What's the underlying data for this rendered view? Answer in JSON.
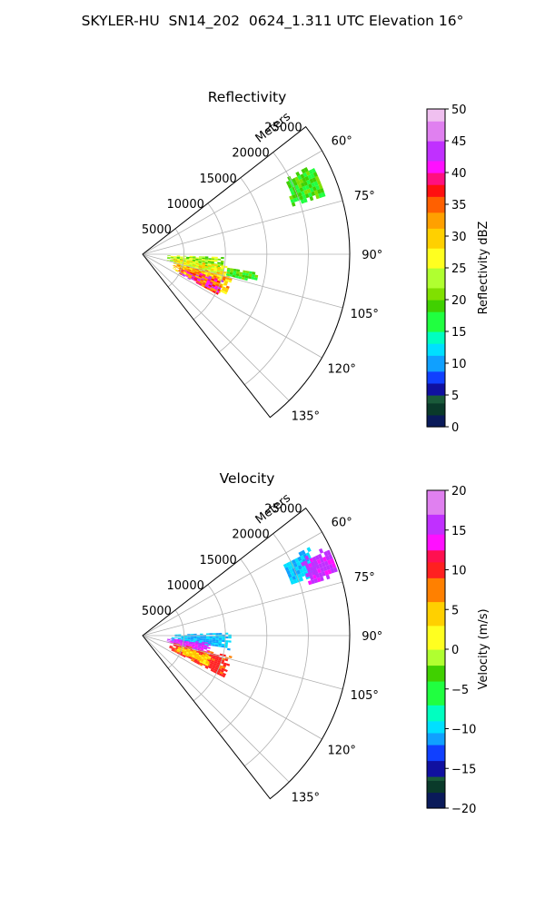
{
  "figure": {
    "suptitle": "SKYLER-HU  SN14_202  0624_1.311 UTC Elevation 16°"
  },
  "chart_data": [
    {
      "type": "heatmap",
      "subtype": "polar-sector",
      "title": "Reflectivity",
      "radial_label": "Meters",
      "radial_ticks": [
        5000,
        10000,
        15000,
        20000,
        25000
      ],
      "radial_tick_labels": [
        "5000",
        "10000",
        "15000",
        "20000",
        "25000"
      ],
      "rlim": [
        0,
        25000
      ],
      "theta_ticks": [
        60,
        75,
        90,
        105,
        120,
        135
      ],
      "theta_tick_labels": [
        "60°",
        "75°",
        "90°",
        "105°",
        "120°",
        "135°"
      ],
      "theta_lim": [
        52,
        142
      ],
      "grid": true,
      "colorbar": {
        "label": "Reflectivity dBZ",
        "range": [
          0,
          50
        ],
        "ticks": [
          0,
          5,
          10,
          15,
          20,
          25,
          30,
          35,
          40,
          45,
          50
        ],
        "tick_labels": [
          "0",
          "5",
          "10",
          "15",
          "20",
          "25",
          "30",
          "35",
          "40",
          "45",
          "50"
        ],
        "stops": [
          {
            "v": 0,
            "color": "#0a1a5a"
          },
          {
            "v": 2,
            "color": "#0a3a2a"
          },
          {
            "v": 4,
            "color": "#1a5a3a"
          },
          {
            "v": 5,
            "color": "#1010a0"
          },
          {
            "v": 7,
            "color": "#1040ff"
          },
          {
            "v": 9,
            "color": "#10a0ff"
          },
          {
            "v": 11,
            "color": "#00e0ff"
          },
          {
            "v": 13,
            "color": "#00ffc0"
          },
          {
            "v": 15,
            "color": "#20ff40"
          },
          {
            "v": 18,
            "color": "#40d000"
          },
          {
            "v": 20,
            "color": "#80e000"
          },
          {
            "v": 22,
            "color": "#b0ff30"
          },
          {
            "v": 25,
            "color": "#ffff20"
          },
          {
            "v": 28,
            "color": "#ffd000"
          },
          {
            "v": 31,
            "color": "#ffa000"
          },
          {
            "v": 34,
            "color": "#ff6000"
          },
          {
            "v": 36,
            "color": "#ff1010"
          },
          {
            "v": 38,
            "color": "#ff1080"
          },
          {
            "v": 40,
            "color": "#ff10ff"
          },
          {
            "v": 42,
            "color": "#c030ff"
          },
          {
            "v": 45,
            "color": "#e080f0"
          },
          {
            "v": 48,
            "color": "#f0c0f0"
          },
          {
            "v": 50,
            "color": "#fff0ff"
          }
        ]
      },
      "echo_regions": [
        {
          "theta": [
            92,
            103
          ],
          "r": [
            3000,
            9500
          ],
          "values": [
            18,
            28
          ]
        },
        {
          "theta": [
            98,
            110
          ],
          "r": [
            3500,
            10500
          ],
          "values": [
            22,
            32
          ]
        },
        {
          "theta": [
            104,
            116
          ],
          "r": [
            4000,
            11000
          ],
          "values": [
            25,
            36
          ]
        },
        {
          "theta": [
            108,
            118
          ],
          "r": [
            5000,
            10000
          ],
          "values": [
            30,
            44
          ]
        },
        {
          "theta": [
            99,
            103
          ],
          "r": [
            10000,
            14000
          ],
          "values": [
            15,
            22
          ]
        },
        {
          "theta": [
            62,
            72
          ],
          "r": [
            19000,
            23000
          ],
          "values": [
            15,
            21
          ]
        }
      ]
    },
    {
      "type": "heatmap",
      "subtype": "polar-sector",
      "title": "Velocity",
      "radial_label": "Meters",
      "radial_ticks": [
        5000,
        10000,
        15000,
        20000,
        25000
      ],
      "radial_tick_labels": [
        "5000",
        "10000",
        "15000",
        "20000",
        "25000"
      ],
      "rlim": [
        0,
        25000
      ],
      "theta_ticks": [
        60,
        75,
        90,
        105,
        120,
        135
      ],
      "theta_tick_labels": [
        "60°",
        "75°",
        "90°",
        "105°",
        "120°",
        "135°"
      ],
      "theta_lim": [
        52,
        142
      ],
      "grid": true,
      "colorbar": {
        "label": "Velocity (m/s)",
        "range": [
          -20,
          20
        ],
        "ticks": [
          -20,
          -15,
          -10,
          -5,
          0,
          5,
          10,
          15,
          20
        ],
        "tick_labels": [
          "−20",
          "−15",
          "−10",
          "−5",
          "0",
          "5",
          "10",
          "15",
          "20"
        ],
        "stops": [
          {
            "v": -20,
            "color": "#0a1a5a"
          },
          {
            "v": -18,
            "color": "#0a3a2a"
          },
          {
            "v": -16.5,
            "color": "#1a5a3a"
          },
          {
            "v": -16,
            "color": "#1010a0"
          },
          {
            "v": -14,
            "color": "#1040ff"
          },
          {
            "v": -12,
            "color": "#10a0ff"
          },
          {
            "v": -10.5,
            "color": "#00e0ff"
          },
          {
            "v": -9,
            "color": "#00ffc0"
          },
          {
            "v": -7,
            "color": "#20ff40"
          },
          {
            "v": -4,
            "color": "#40d000"
          },
          {
            "v": -2,
            "color": "#b0ff30"
          },
          {
            "v": 0,
            "color": "#ffff20"
          },
          {
            "v": 3,
            "color": "#ffd000"
          },
          {
            "v": 6,
            "color": "#ff8000"
          },
          {
            "v": 9,
            "color": "#ff2020"
          },
          {
            "v": 11,
            "color": "#ff1050"
          },
          {
            "v": 12.5,
            "color": "#ff10ff"
          },
          {
            "v": 14.5,
            "color": "#c030ff"
          },
          {
            "v": 17,
            "color": "#e080f0"
          },
          {
            "v": 20,
            "color": "#fff0ff"
          }
        ]
      },
      "echo_regions": [
        {
          "theta": [
            88,
            99
          ],
          "r": [
            3500,
            10500
          ],
          "values": [
            -12,
            -9
          ]
        },
        {
          "theta": [
            96,
            104
          ],
          "r": [
            3000,
            8000
          ],
          "values": [
            13,
            17
          ]
        },
        {
          "theta": [
            103,
            117
          ],
          "r": [
            3500,
            11000
          ],
          "values": [
            8,
            11
          ]
        },
        {
          "theta": [
            106,
            114
          ],
          "r": [
            4500,
            8500
          ],
          "values": [
            2,
            6
          ]
        },
        {
          "theta": [
            62,
            70
          ],
          "r": [
            19000,
            22500
          ],
          "values": [
            -11,
            -9
          ]
        },
        {
          "theta": [
            64,
            72
          ],
          "r": [
            21000,
            24500
          ],
          "values": [
            14,
            16
          ]
        }
      ]
    }
  ]
}
